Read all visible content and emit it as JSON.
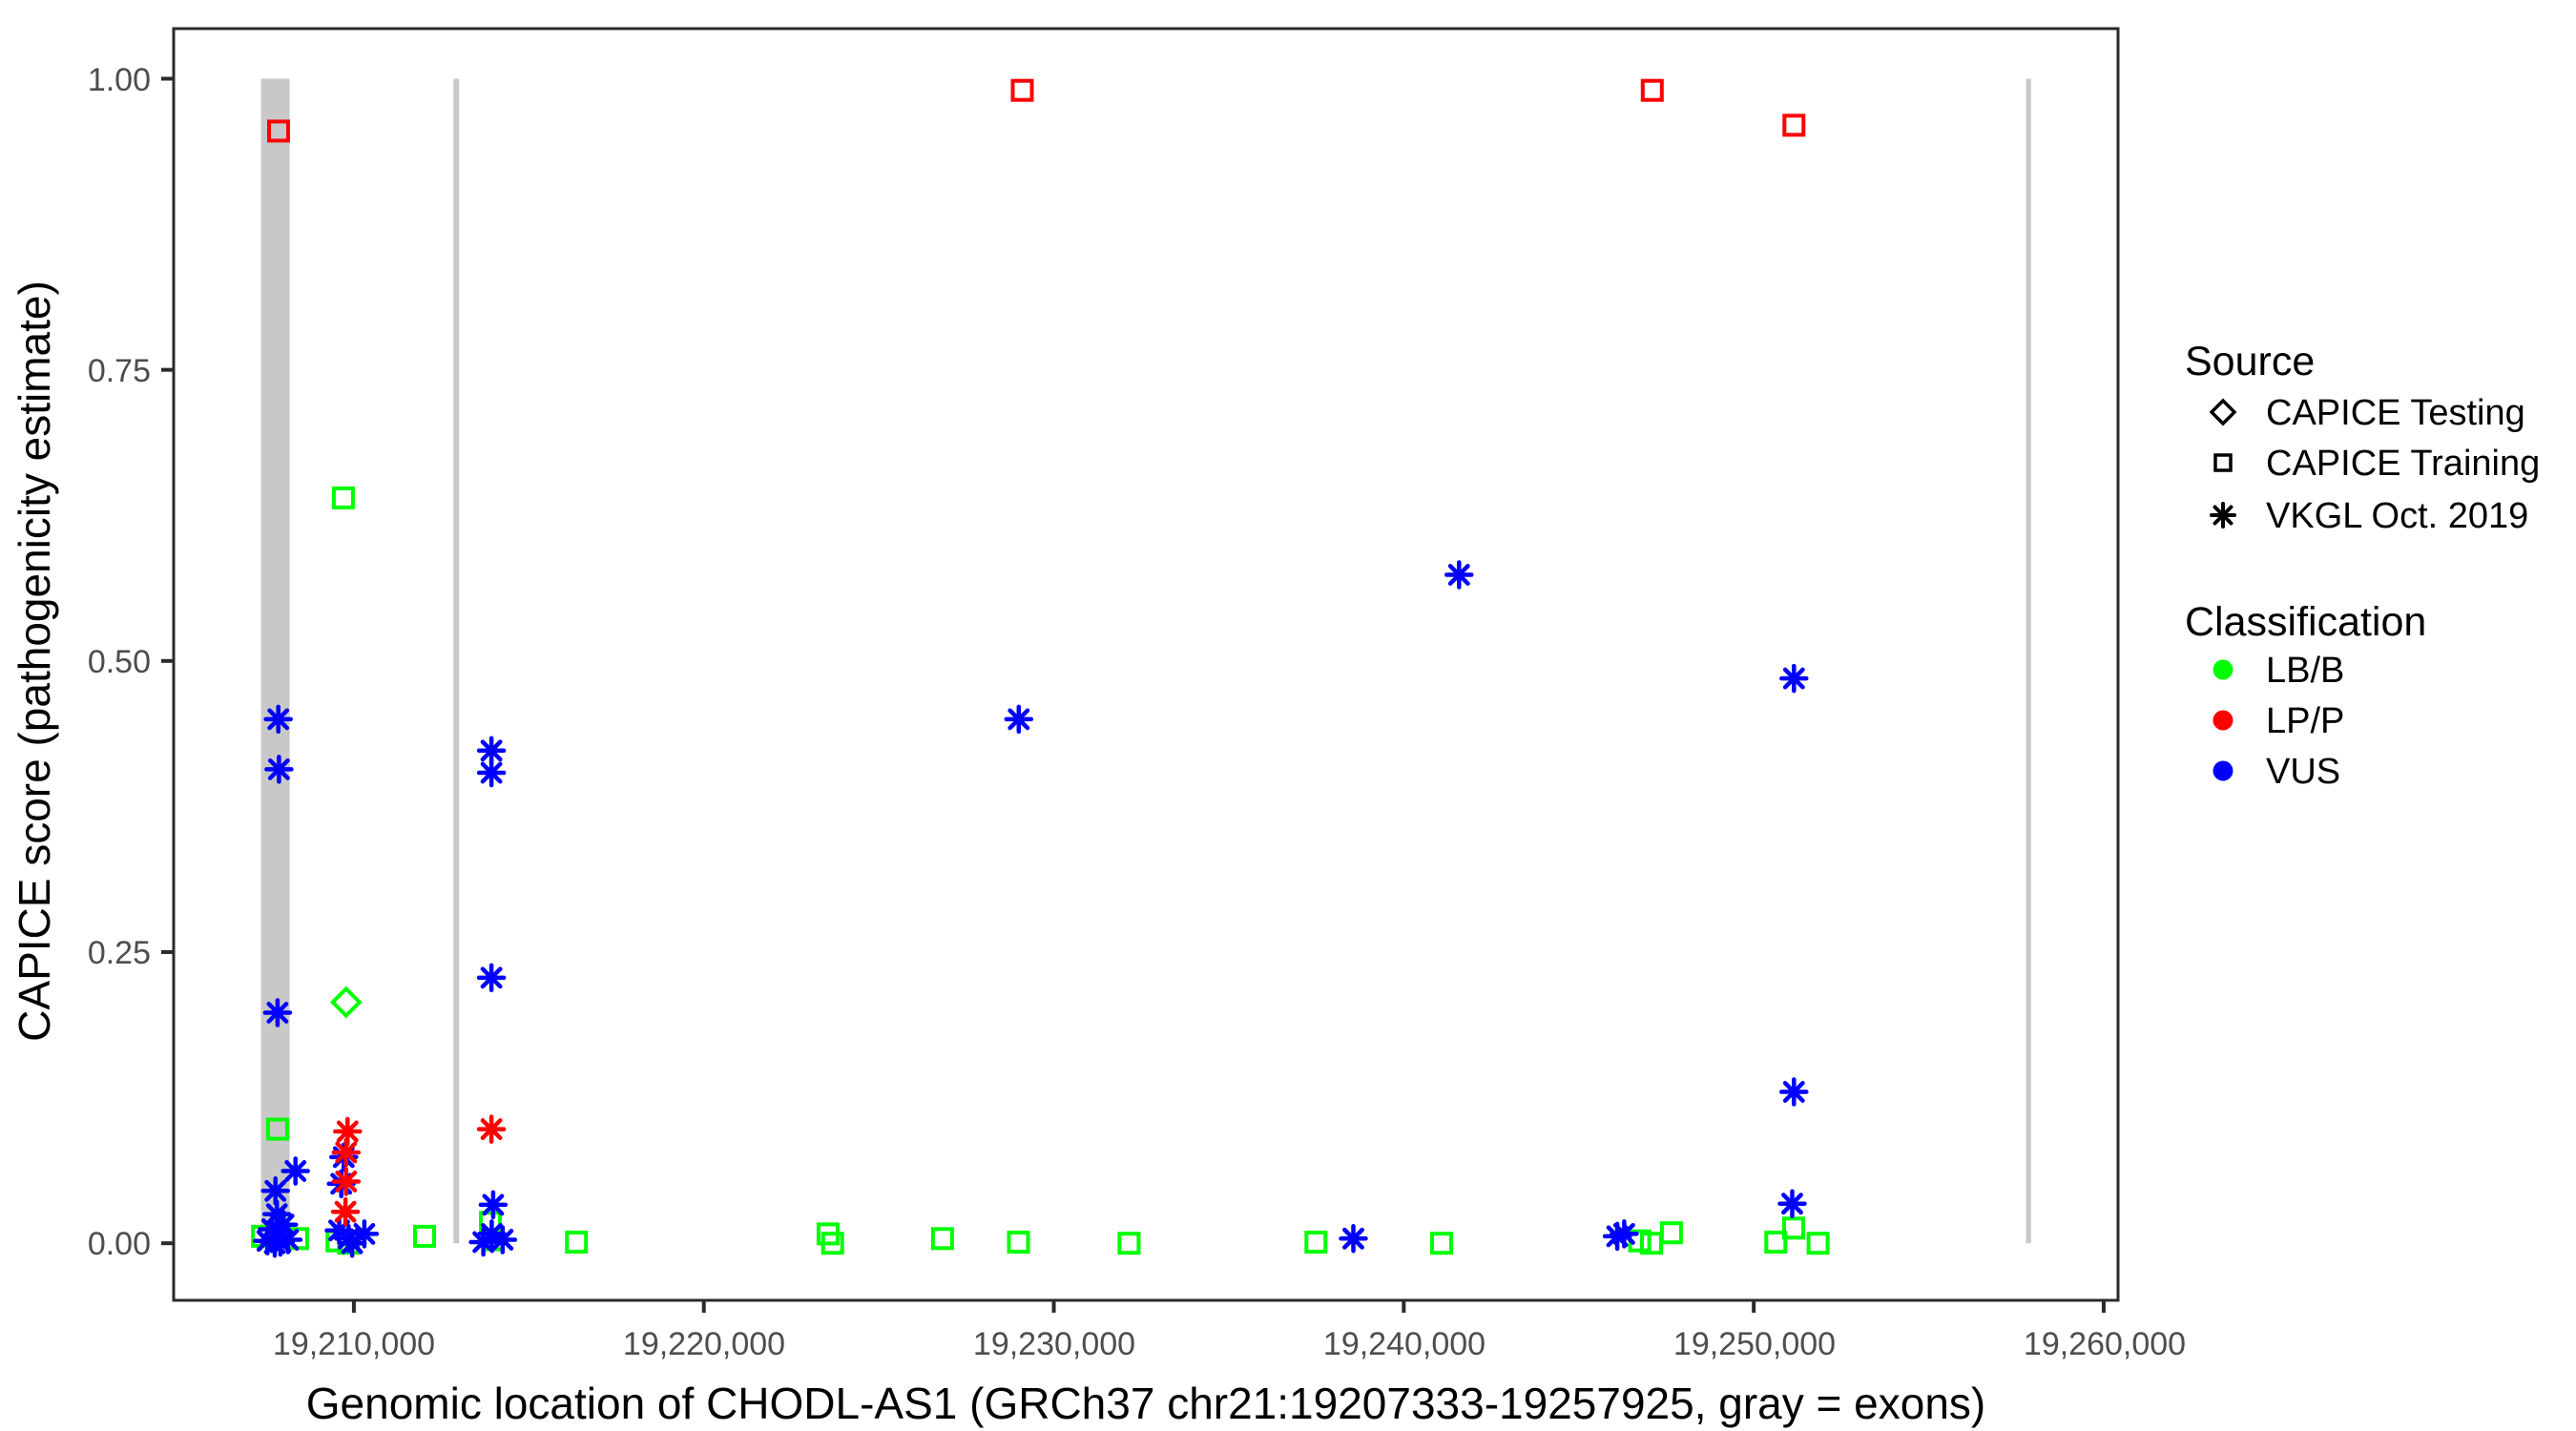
{
  "legend": {
    "source": {
      "title": "Source",
      "items": [
        {
          "label": "CAPICE Testing",
          "marker": "open-diamond"
        },
        {
          "label": "CAPICE Training",
          "marker": "open-square"
        },
        {
          "label": "VKGL Oct. 2019",
          "marker": "asterisk"
        }
      ]
    },
    "classification": {
      "title": "Classification",
      "items": [
        {
          "label": "LB/B",
          "color": "#00FF00"
        },
        {
          "label": "LP/P",
          "color": "#FF0000"
        },
        {
          "label": "VUS",
          "color": "#0000FF"
        }
      ]
    }
  },
  "chart_data": {
    "type": "scatter",
    "title": "",
    "xlabel": "Genomic location of CHODL-AS1 (GRCh37 chr21:19207333-19257925, gray = exons)",
    "ylabel": "CAPICE score (pathogenicity estimate)",
    "xlim": [
      19204850,
      19260410
    ],
    "ylim": [
      -0.049,
      1.043
    ],
    "x_tick_values": [
      19210000,
      19220000,
      19230000,
      19240000,
      19250000,
      19260000
    ],
    "x_tick_labels": [
      "19,210,000",
      "19,220,000",
      "19,230,000",
      "19,240,000",
      "19,250,000",
      "19,260,000"
    ],
    "y_tick_values": [
      0,
      0.25,
      0.5,
      0.75,
      1
    ],
    "y_tick_labels": [
      "0.00",
      "0.25",
      "0.50",
      "0.75",
      "1.00"
    ],
    "grid": false,
    "legend_position": "right",
    "exon_color": "#C8C8C8",
    "exon_score_span": [
      0,
      1
    ],
    "exons": [
      [
        19207345,
        19208165
      ],
      [
        19212845,
        19213005
      ],
      [
        19257780,
        19257925
      ]
    ],
    "series": [
      {
        "name": "CAPICE Training / LB/B",
        "source": "CAPICE Training",
        "classification": "LB/B",
        "marker": "open-square",
        "color": "#00FF00",
        "points": [
          [
            19209700,
            0.64
          ],
          [
            19207820,
            0.098
          ],
          [
            19207390,
            0.006
          ],
          [
            19208390,
            0.004
          ],
          [
            19209520,
            0.002
          ],
          [
            19209850,
            0.0
          ],
          [
            19212020,
            0.006
          ],
          [
            19213900,
            0.018
          ],
          [
            19213970,
            0.003
          ],
          [
            19216360,
            0.001
          ],
          [
            19223550,
            0.008
          ],
          [
            19223680,
            0.0
          ],
          [
            19226820,
            0.004
          ],
          [
            19228990,
            0.001
          ],
          [
            19232150,
            0.0
          ],
          [
            19237490,
            0.001
          ],
          [
            19241080,
            0.0
          ],
          [
            19246740,
            0.002
          ],
          [
            19247080,
            0.0
          ],
          [
            19247650,
            0.009
          ],
          [
            19250630,
            0.001
          ],
          [
            19251140,
            0.013
          ],
          [
            19251840,
            0.0
          ]
        ]
      },
      {
        "name": "CAPICE Testing / LB/B",
        "source": "CAPICE Testing",
        "classification": "LB/B",
        "marker": "open-diamond",
        "color": "#00FF00",
        "points": [
          [
            19209780,
            0.207
          ]
        ]
      },
      {
        "name": "VKGL Oct. 2019 / VUS",
        "source": "VKGL Oct. 2019",
        "classification": "VUS",
        "marker": "asterisk",
        "color": "#0000FF",
        "points": [
          [
            19207840,
            0.45
          ],
          [
            19207860,
            0.407
          ],
          [
            19207820,
            0.198
          ],
          [
            19208330,
            0.062
          ],
          [
            19207760,
            0.045
          ],
          [
            19207800,
            0.025
          ],
          [
            19207990,
            0.016
          ],
          [
            19207670,
            0.012
          ],
          [
            19208120,
            0.003
          ],
          [
            19207530,
            0.002
          ],
          [
            19207900,
            0.001
          ],
          [
            19207740,
            0.0
          ],
          [
            19209710,
            0.074
          ],
          [
            19209640,
            0.051
          ],
          [
            19209580,
            0.011
          ],
          [
            19209850,
            0.004
          ],
          [
            19209950,
            0.0
          ],
          [
            19210300,
            0.008
          ],
          [
            19213930,
            0.423
          ],
          [
            19213930,
            0.404
          ],
          [
            19213930,
            0.228
          ],
          [
            19213980,
            0.033
          ],
          [
            19213940,
            0.008
          ],
          [
            19214250,
            0.003
          ],
          [
            19213700,
            0.001
          ],
          [
            19229000,
            0.45
          ],
          [
            19238560,
            0.004
          ],
          [
            19241580,
            0.574
          ],
          [
            19246100,
            0.006
          ],
          [
            19246300,
            0.008
          ],
          [
            19251150,
            0.485
          ],
          [
            19251150,
            0.13
          ],
          [
            19251100,
            0.034
          ]
        ]
      },
      {
        "name": "VKGL Oct. 2019 / LP/P",
        "source": "VKGL Oct. 2019",
        "classification": "LP/P",
        "marker": "asterisk",
        "color": "#FF0000",
        "points": [
          [
            19209820,
            0.096
          ],
          [
            19209780,
            0.078
          ],
          [
            19209780,
            0.053
          ],
          [
            19209760,
            0.027
          ],
          [
            19213930,
            0.098
          ]
        ]
      },
      {
        "name": "CAPICE Training / LP/P",
        "source": "CAPICE Training",
        "classification": "LP/P",
        "marker": "open-square",
        "color": "#FF0000",
        "points": [
          [
            19207850,
            0.955
          ],
          [
            19229100,
            0.99
          ],
          [
            19247100,
            0.99
          ],
          [
            19251150,
            0.96
          ]
        ]
      }
    ]
  }
}
